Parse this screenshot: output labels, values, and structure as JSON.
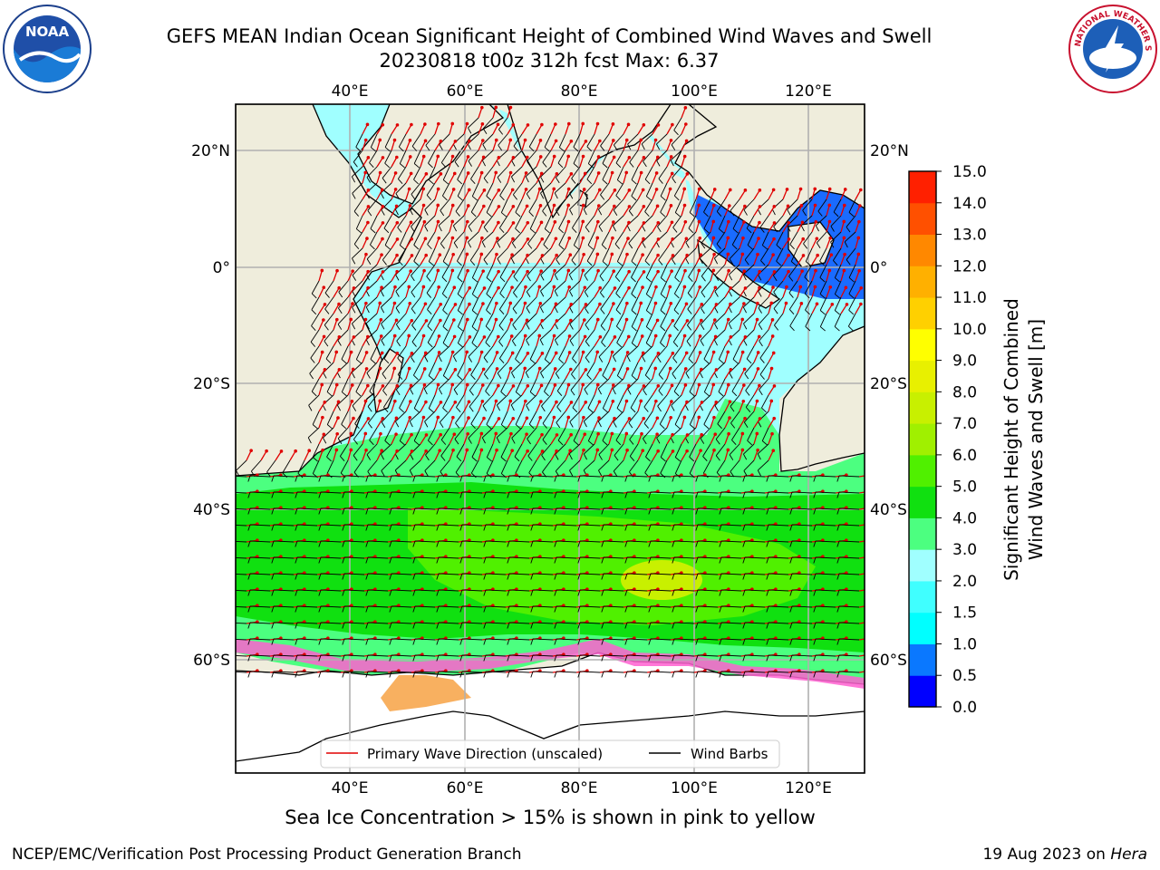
{
  "title": {
    "line1": "GEFS MEAN Indian Ocean Significant Height of Combined Wind Waves and Swell",
    "line2": "20230818 t00z 312h fcst   Max: 6.37"
  },
  "logos": {
    "left": {
      "name": "noaa-logo",
      "text": "NOAA"
    },
    "right": {
      "name": "nws-logo",
      "text": "NATIONAL WEATHER SERVICE"
    }
  },
  "map": {
    "lon_ticks": [
      "40°E",
      "60°E",
      "80°E",
      "100°E",
      "120°E"
    ],
    "lat_ticks": [
      "20°N",
      "0°",
      "20°S",
      "40°S",
      "60°S"
    ]
  },
  "legend": {
    "wave_direction": "Primary Wave Direction (unscaled)",
    "wind_barbs": "Wind Barbs"
  },
  "colorbar": {
    "label_line1": "Significant Height of Combined",
    "label_line2": "Wind Waves and Swell [m]",
    "ticks": [
      "0.0",
      "0.5",
      "1.0",
      "1.5",
      "2.0",
      "3.0",
      "4.0",
      "5.0",
      "6.0",
      "7.0",
      "8.0",
      "9.0",
      "10.0",
      "11.0",
      "12.0",
      "13.0",
      "14.0",
      "15.0"
    ],
    "colors": [
      "#0000ff",
      "#0a78ff",
      "#00ffff",
      "#40ffff",
      "#a0ffff",
      "#4cff80",
      "#10e010",
      "#50f000",
      "#a0f000",
      "#c8f000",
      "#e8f000",
      "#ffff00",
      "#ffd000",
      "#ffb000",
      "#ff8800",
      "#ff5000",
      "#ff2000"
    ]
  },
  "caption": "Sea Ice Concentration > 15% is shown in pink to yellow",
  "footer": {
    "left": "NCEP/EMC/Verification Post Processing Product Generation Branch",
    "right_date": "19 Aug 2023 on ",
    "right_host": "Hera"
  }
}
